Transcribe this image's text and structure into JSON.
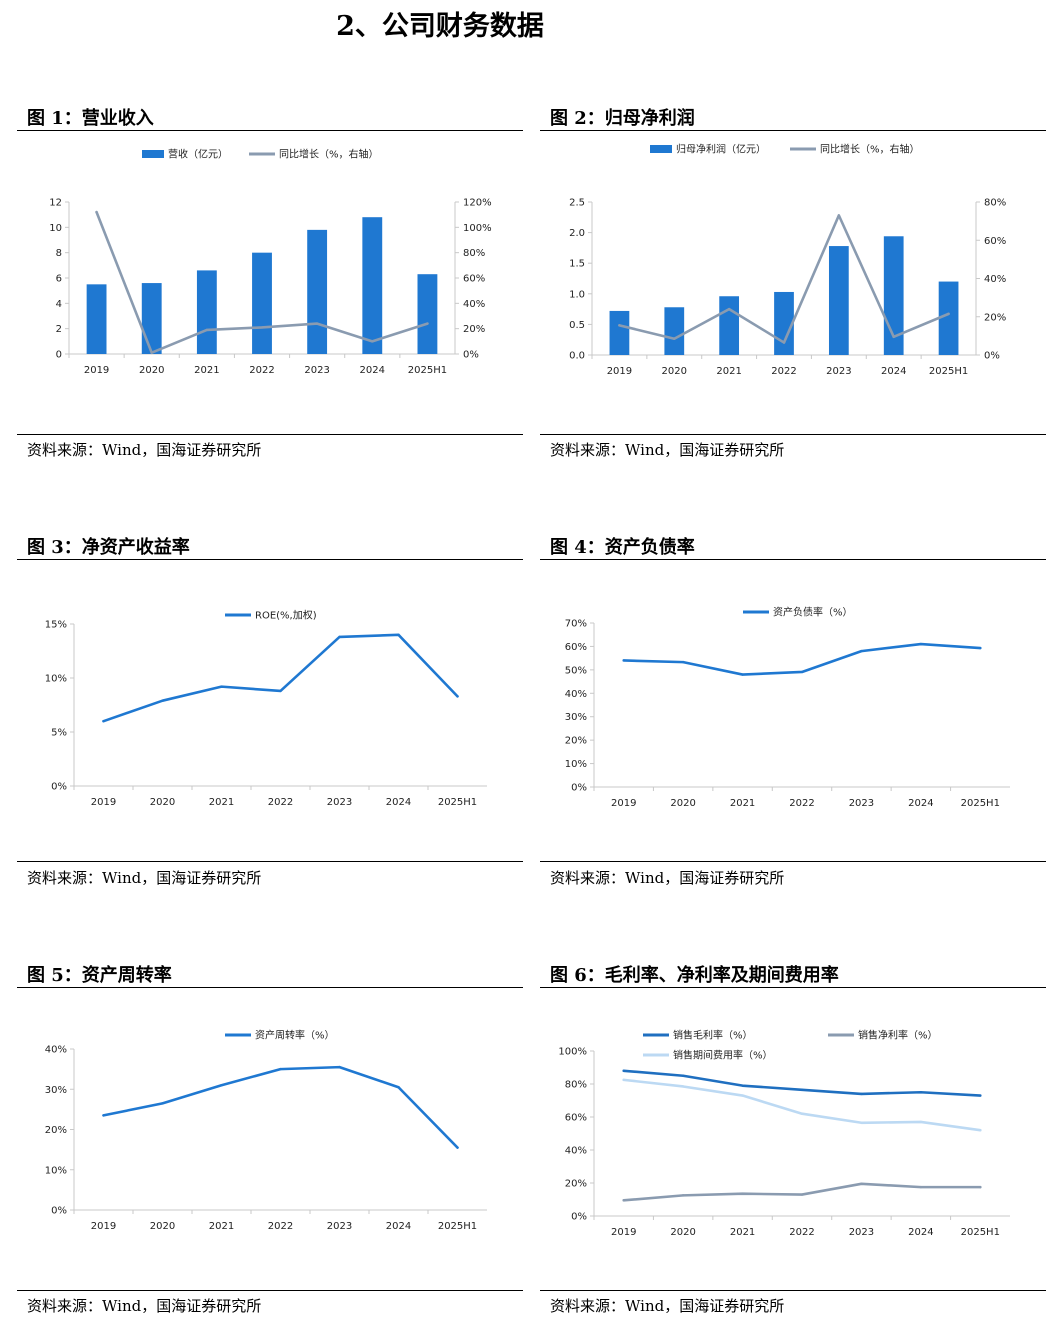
{
  "page_title": "2、公司财务数据",
  "source_text": "资料来源：Wind，国海证券研究所",
  "colors": {
    "blue": "#1f78d1",
    "gray": "#8a9bb0",
    "lightblue": "#bcd9f3",
    "navy": "#1f6fc0"
  },
  "chart_data": [
    {
      "id": "fig1",
      "fig_title": "图 1：营业收入",
      "type": "bar+line",
      "categories": [
        "2019",
        "2020",
        "2021",
        "2022",
        "2023",
        "2024",
        "2025H1"
      ],
      "series": [
        {
          "name": "营收（亿元）",
          "type": "bar",
          "axis": "left",
          "values": [
            5.5,
            5.6,
            6.6,
            8.0,
            9.8,
            10.8,
            6.3
          ]
        },
        {
          "name": "同比增长（%，右轴）",
          "type": "line",
          "axis": "right",
          "values": [
            112,
            1,
            19,
            21,
            24,
            10,
            24
          ]
        }
      ],
      "left_axis": {
        "min": 0,
        "max": 12,
        "ticks": [
          "0",
          "2",
          "4",
          "6",
          "8",
          "10",
          "12"
        ]
      },
      "right_axis": {
        "min": 0,
        "max": 120,
        "ticks": [
          "0%",
          "20%",
          "40%",
          "60%",
          "80%",
          "100%",
          "120%"
        ]
      }
    },
    {
      "id": "fig2",
      "fig_title": "图 2：归母净利润",
      "type": "bar+line",
      "categories": [
        "2019",
        "2020",
        "2021",
        "2022",
        "2023",
        "2024",
        "2025H1"
      ],
      "series": [
        {
          "name": "归母净利润（亿元）",
          "type": "bar",
          "axis": "left",
          "values": [
            0.72,
            0.78,
            0.96,
            1.03,
            1.78,
            1.94,
            1.2
          ]
        },
        {
          "name": "同比增长（%，右轴）",
          "type": "line",
          "axis": "right",
          "values": [
            15.5,
            8.5,
            24,
            6.5,
            73,
            9.5,
            21.5
          ]
        }
      ],
      "left_axis": {
        "min": 0,
        "max": 2.5,
        "ticks": [
          "0.0",
          "0.5",
          "1.0",
          "1.5",
          "2.0",
          "2.5"
        ]
      },
      "right_axis": {
        "min": 0,
        "max": 80,
        "ticks": [
          "0%",
          "20%",
          "40%",
          "60%",
          "80%"
        ]
      }
    },
    {
      "id": "fig3",
      "fig_title": "图 3：净资产收益率",
      "type": "line",
      "categories": [
        "2019",
        "2020",
        "2021",
        "2022",
        "2023",
        "2024",
        "2025H1"
      ],
      "series": [
        {
          "name": "ROE(%,加权)",
          "values": [
            6.0,
            7.9,
            9.2,
            8.8,
            13.8,
            14.0,
            8.3
          ]
        }
      ],
      "left_axis": {
        "min": 0,
        "max": 15,
        "ticks": [
          "0%",
          "5%",
          "10%",
          "15%"
        ]
      }
    },
    {
      "id": "fig4",
      "fig_title": "图 4：资产负债率",
      "type": "line",
      "categories": [
        "2019",
        "2020",
        "2021",
        "2022",
        "2023",
        "2024",
        "2025H1"
      ],
      "series": [
        {
          "name": "资产负债率（%）",
          "values": [
            54.0,
            53.3,
            48.0,
            49.1,
            58.0,
            61.0,
            59.3
          ]
        }
      ],
      "left_axis": {
        "min": 0,
        "max": 70,
        "ticks": [
          "0%",
          "10%",
          "20%",
          "30%",
          "40%",
          "50%",
          "60%",
          "70%"
        ]
      }
    },
    {
      "id": "fig5",
      "fig_title": "图 5：资产周转率",
      "type": "line",
      "categories": [
        "2019",
        "2020",
        "2021",
        "2022",
        "2023",
        "2024",
        "2025H1"
      ],
      "series": [
        {
          "name": "资产周转率（%）",
          "values": [
            23.5,
            26.5,
            31.0,
            35.0,
            35.5,
            30.5,
            15.5
          ]
        }
      ],
      "left_axis": {
        "min": 0,
        "max": 40,
        "ticks": [
          "0%",
          "10%",
          "20%",
          "30%",
          "40%"
        ]
      }
    },
    {
      "id": "fig6",
      "fig_title": "图 6：毛利率、净利率及期间费用率",
      "type": "line",
      "categories": [
        "2019",
        "2020",
        "2021",
        "2022",
        "2023",
        "2024",
        "2025H1"
      ],
      "series": [
        {
          "name": "销售毛利率（%）",
          "values": [
            88,
            85,
            79,
            76.5,
            74,
            75,
            73
          ]
        },
        {
          "name": "销售净利率（%）",
          "values": [
            9.5,
            12.5,
            13.5,
            13,
            19.5,
            17.5,
            17.5
          ]
        },
        {
          "name": "销售期间费用率（%）",
          "values": [
            82.5,
            78.5,
            73,
            62,
            56.5,
            57,
            52
          ]
        }
      ],
      "left_axis": {
        "min": 0,
        "max": 100,
        "ticks": [
          "0%",
          "20%",
          "40%",
          "60%",
          "80%",
          "100%"
        ]
      }
    }
  ]
}
